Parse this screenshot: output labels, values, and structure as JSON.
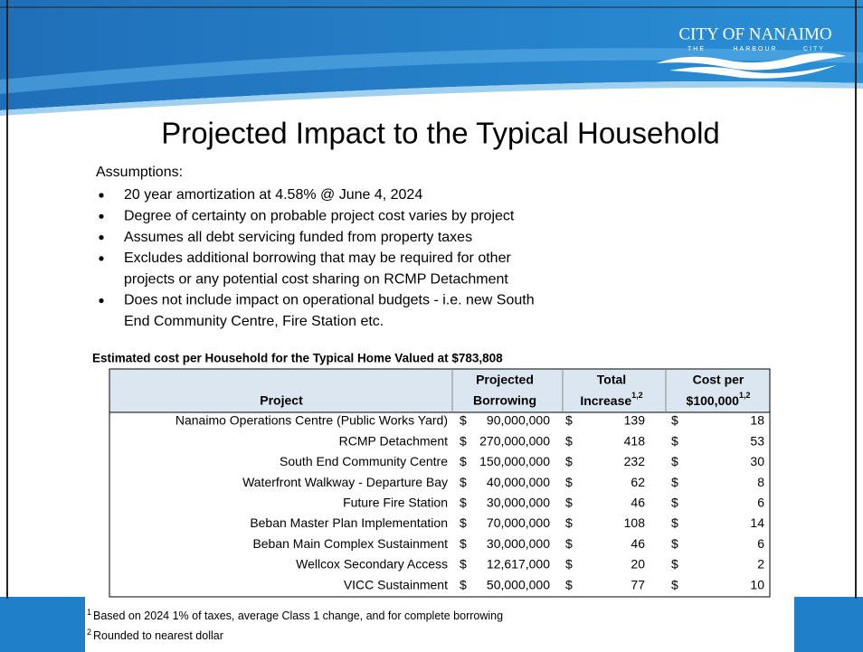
{
  "logo": {
    "name": "CITY OF NANAIMO",
    "tagline": [
      "THE",
      "HARBOUR",
      "CITY"
    ]
  },
  "title": "Projected Impact to the Typical Household",
  "assumptions": {
    "heading": "Assumptions:",
    "bullets": [
      [
        "20 year amortization at 4.58% @ June 4, 2024"
      ],
      [
        "Degree of certainty on probable project cost varies by project"
      ],
      [
        "Assumes all debt servicing funded from property taxes"
      ],
      [
        "Excludes additional borrowing that may be required for other",
        "projects or any potential cost sharing on RCMP Detachment"
      ],
      [
        "Does not include impact on operational budgets - i.e. new South",
        "End Community Centre, Fire Station etc."
      ]
    ]
  },
  "table": {
    "caption": "Estimated  cost per Household for the Typical Home Valued at $783,808",
    "header": {
      "project": "Project",
      "borrowing": [
        "Projected",
        "Borrowing"
      ],
      "increase": [
        "Total",
        "Increase"
      ],
      "cost": [
        "Cost per",
        "$100,000"
      ],
      "superscript": "1,2"
    },
    "currency": "$",
    "rows": [
      [
        "Nanaimo Operations Centre (Public Works Yard)",
        "90,000,000",
        "139",
        "18"
      ],
      [
        "RCMP Detachment",
        "270,000,000",
        "418",
        "53"
      ],
      [
        "South End Community Centre",
        "150,000,000",
        "232",
        "30"
      ],
      [
        "Waterfront Walkway - Departure Bay",
        "40,000,000",
        "62",
        "8"
      ],
      [
        "Future Fire Station",
        "30,000,000",
        "46",
        "6"
      ],
      [
        "Beban Master Plan Implementation",
        "70,000,000",
        "108",
        "14"
      ],
      [
        "Beban Main Complex Sustainment",
        "30,000,000",
        "46",
        "6"
      ],
      [
        "Wellcox Secondary Access",
        "12,617,000",
        "20",
        "2"
      ],
      [
        "VICC Sustainment",
        "50,000,000",
        "77",
        "10"
      ]
    ]
  },
  "footnotes": [
    {
      "mark": "1",
      "text": "Based on 2024 1% of taxes, average Class 1 change, and for complete borrowing"
    },
    {
      "mark": "2",
      "text": "Rounded to nearest dollar"
    }
  ]
}
